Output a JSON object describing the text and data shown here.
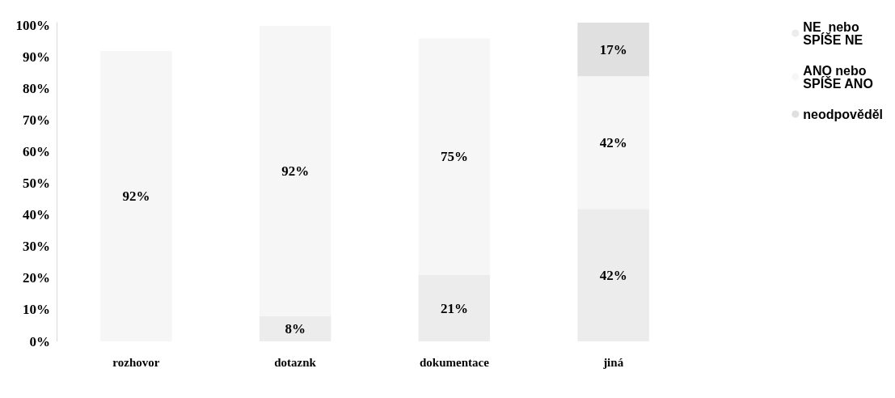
{
  "chart_data": {
    "type": "bar",
    "stacked": true,
    "categories": [
      "rozhovor",
      "dotaznk",
      "dokumentace",
      "jiná"
    ],
    "series": [
      {
        "name": "NE  nebo SPÍŠE NE",
        "color": "#ececec",
        "values": [
          null,
          8,
          21,
          42
        ],
        "value_labels": [
          null,
          "8%",
          "21%",
          "42%"
        ]
      },
      {
        "name": "ANO nebo SPÍŠE ANO",
        "color": "#f6f6f6",
        "values": [
          92,
          92,
          75,
          42
        ],
        "value_labels": [
          "92%",
          "92%",
          "75%",
          "42%"
        ]
      },
      {
        "name": "neodpověděl",
        "color": "#e0e0e0",
        "values": [
          null,
          null,
          null,
          17
        ],
        "value_labels": [
          null,
          null,
          null,
          "17%"
        ]
      }
    ],
    "ylim": [
      0,
      101
    ],
    "yticks": [
      {
        "value": 0,
        "label": "0%"
      },
      {
        "value": 10,
        "label": "10%"
      },
      {
        "value": 20,
        "label": "20%"
      },
      {
        "value": 30,
        "label": "30%"
      },
      {
        "value": 40,
        "label": "40%"
      },
      {
        "value": 50,
        "label": "50%"
      },
      {
        "value": 60,
        "label": "60%"
      },
      {
        "value": 70,
        "label": "70%"
      },
      {
        "value": 80,
        "label": "80%"
      },
      {
        "value": 90,
        "label": "90%"
      },
      {
        "value": 100,
        "label": "100%"
      }
    ],
    "legend": "top right",
    "grid": false
  }
}
